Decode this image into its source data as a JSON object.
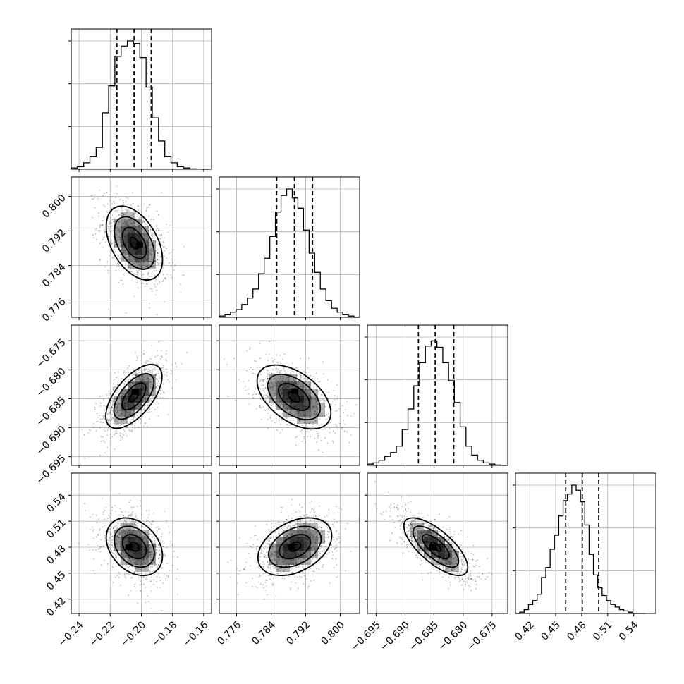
{
  "chart_data": {
    "type": "corner",
    "grid": true,
    "parameters": [
      {
        "range": [
          -0.245,
          -0.155
        ],
        "ticks": [
          -0.24,
          -0.22,
          -0.2,
          -0.18,
          -0.16
        ],
        "tick_labels": [
          "−0.24",
          "−0.22",
          "−0.20",
          "−0.18",
          "−0.16"
        ],
        "quantiles": [
          -0.2157,
          -0.2047,
          -0.1937
        ],
        "hist_edges": [
          -0.245,
          -0.241,
          -0.237,
          -0.233,
          -0.229,
          -0.225,
          -0.221,
          -0.217,
          -0.213,
          -0.209,
          -0.205,
          -0.201,
          -0.197,
          -0.193,
          -0.189,
          -0.185,
          -0.181,
          -0.177,
          -0.173,
          -0.169,
          -0.165,
          -0.161,
          -0.157
        ],
        "hist_counts": [
          0.01,
          0.02,
          0.05,
          0.1,
          0.17,
          0.44,
          0.65,
          0.88,
          0.96,
          1.0,
          0.98,
          0.87,
          0.64,
          0.4,
          0.22,
          0.1,
          0.05,
          0.02,
          0.01,
          0.003,
          0.001,
          0.0
        ]
      },
      {
        "range": [
          0.772,
          0.8045
        ],
        "ticks": [
          0.776,
          0.784,
          0.792,
          0.8
        ],
        "tick_labels": [
          "0.776",
          "0.784",
          "0.792",
          "0.800"
        ],
        "quantiles": [
          0.7853,
          0.7894,
          0.7936
        ],
        "hist_edges": [
          0.772,
          0.7733,
          0.7746,
          0.7759,
          0.7772,
          0.7785,
          0.7798,
          0.7811,
          0.7824,
          0.7837,
          0.785,
          0.7863,
          0.7876,
          0.7889,
          0.7902,
          0.7915,
          0.7928,
          0.7941,
          0.7954,
          0.7967,
          0.798,
          0.7993,
          0.8006,
          0.8019,
          0.8032,
          0.8045
        ],
        "hist_counts": [
          0.01,
          0.02,
          0.04,
          0.06,
          0.1,
          0.15,
          0.22,
          0.34,
          0.46,
          0.63,
          0.82,
          0.95,
          1.0,
          0.93,
          0.85,
          0.68,
          0.5,
          0.35,
          0.22,
          0.13,
          0.07,
          0.04,
          0.02,
          0.01,
          0.0
        ]
      },
      {
        "range": [
          -0.6965,
          -0.6723
        ],
        "ticks": [
          -0.695,
          -0.69,
          -0.685,
          -0.68,
          -0.675
        ],
        "tick_labels": [
          "−0.695",
          "−0.690",
          "−0.685",
          "−0.680",
          "−0.675"
        ],
        "quantiles": [
          -0.6877,
          -0.6848,
          -0.6816
        ],
        "hist_edges": [
          -0.6965,
          -0.6955,
          -0.6945,
          -0.6935,
          -0.6925,
          -0.6915,
          -0.6905,
          -0.6895,
          -0.6885,
          -0.6875,
          -0.6865,
          -0.6855,
          -0.6845,
          -0.6835,
          -0.6825,
          -0.6815,
          -0.6805,
          -0.6795,
          -0.6785,
          -0.6775,
          -0.6765,
          -0.6755,
          -0.6745,
          -0.6735,
          -0.6725
        ],
        "hist_counts": [
          0.01,
          0.02,
          0.04,
          0.07,
          0.1,
          0.15,
          0.28,
          0.44,
          0.62,
          0.8,
          0.93,
          0.97,
          0.92,
          0.8,
          0.66,
          0.49,
          0.3,
          0.15,
          0.08,
          0.04,
          0.02,
          0.01,
          0.003,
          0.0
        ]
      },
      {
        "range": [
          0.4035,
          0.5655
        ],
        "ticks": [
          0.42,
          0.45,
          0.48,
          0.51,
          0.54
        ],
        "tick_labels": [
          "0.42",
          "0.45",
          "0.48",
          "0.51",
          "0.54"
        ],
        "quantiles": [
          0.4615,
          0.4806,
          0.4996
        ],
        "hist_edges": [
          0.4035,
          0.4085,
          0.4135,
          0.4185,
          0.4235,
          0.4285,
          0.4335,
          0.4385,
          0.4435,
          0.4485,
          0.4535,
          0.4585,
          0.4635,
          0.4685,
          0.4735,
          0.4785,
          0.4835,
          0.4885,
          0.4935,
          0.4985,
          0.5035,
          0.5085,
          0.5135,
          0.5185,
          0.5235,
          0.5285,
          0.5335,
          0.5385,
          0.5435,
          0.5485,
          0.5535
        ],
        "hist_counts": [
          0.0,
          0.01,
          0.03,
          0.07,
          0.1,
          0.15,
          0.28,
          0.36,
          0.5,
          0.61,
          0.76,
          0.88,
          0.93,
          1.0,
          0.96,
          0.87,
          0.69,
          0.46,
          0.3,
          0.2,
          0.14,
          0.1,
          0.07,
          0.05,
          0.03,
          0.02,
          0.01,
          0.0,
          0.0,
          0.0
        ]
      }
    ],
    "pairs": [
      {
        "x": 0,
        "y": 1,
        "center": [
          -0.2045,
          0.7892
        ],
        "sd": [
          0.0095,
          0.0045
        ],
        "corr": -0.45,
        "peak": [
          -0.2012,
          0.7888
        ]
      },
      {
        "x": 0,
        "y": 2,
        "center": [
          -0.2048,
          -0.6846
        ],
        "sd": [
          0.0095,
          0.0029
        ],
        "corr": 0.62,
        "peak": [
          -0.204,
          -0.6838
        ]
      },
      {
        "x": 1,
        "y": 2,
        "center": [
          0.7893,
          -0.6847
        ],
        "sd": [
          0.0045,
          0.0029
        ],
        "corr": -0.5,
        "peak": [
          0.7895,
          -0.6837
        ]
      },
      {
        "x": 0,
        "y": 3,
        "center": [
          -0.2045,
          0.4806
        ],
        "sd": [
          0.0095,
          0.0175
        ],
        "corr": -0.32,
        "peak": [
          -0.208,
          0.48
        ]
      },
      {
        "x": 1,
        "y": 3,
        "center": [
          0.7895,
          0.4806
        ],
        "sd": [
          0.0045,
          0.0175
        ],
        "corr": 0.38,
        "peak": [
          0.7887,
          0.48
        ]
      },
      {
        "x": 2,
        "y": 3,
        "center": [
          -0.6847,
          0.4806
        ],
        "sd": [
          0.0029,
          0.0175
        ],
        "corr": -0.72,
        "peak": [
          -0.6852,
          0.48
        ]
      }
    ]
  }
}
